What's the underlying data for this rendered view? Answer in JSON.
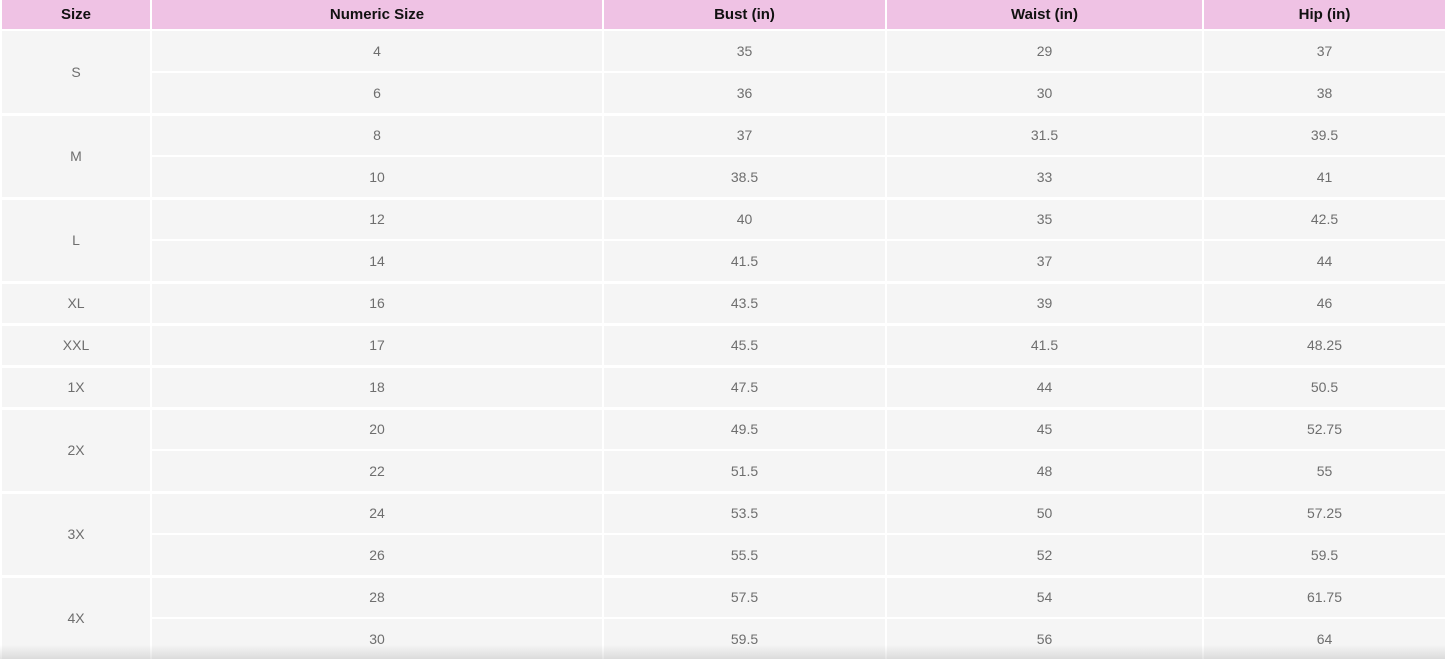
{
  "table": {
    "columns": [
      "Size",
      "Numeric Size",
      "Bust (in)",
      "Waist (in)",
      "Hip (in)"
    ],
    "groups": [
      {
        "size": "S",
        "rows": [
          [
            "4",
            "35",
            "29",
            "37"
          ],
          [
            "6",
            "36",
            "30",
            "38"
          ]
        ]
      },
      {
        "size": "M",
        "rows": [
          [
            "8",
            "37",
            "31.5",
            "39.5"
          ],
          [
            "10",
            "38.5",
            "33",
            "41"
          ]
        ]
      },
      {
        "size": "L",
        "rows": [
          [
            "12",
            "40",
            "35",
            "42.5"
          ],
          [
            "14",
            "41.5",
            "37",
            "44"
          ]
        ]
      },
      {
        "size": "XL",
        "rows": [
          [
            "16",
            "43.5",
            "39",
            "46"
          ]
        ]
      },
      {
        "size": "XXL",
        "rows": [
          [
            "17",
            "45.5",
            "41.5",
            "48.25"
          ]
        ]
      },
      {
        "size": "1X",
        "rows": [
          [
            "18",
            "47.5",
            "44",
            "50.5"
          ]
        ]
      },
      {
        "size": "2X",
        "rows": [
          [
            "20",
            "49.5",
            "45",
            "52.75"
          ],
          [
            "22",
            "51.5",
            "48",
            "55"
          ]
        ]
      },
      {
        "size": "3X",
        "rows": [
          [
            "24",
            "53.5",
            "50",
            "57.25"
          ],
          [
            "26",
            "55.5",
            "52",
            "59.5"
          ]
        ]
      },
      {
        "size": "4X",
        "rows": [
          [
            "28",
            "57.5",
            "54",
            "61.75"
          ],
          [
            "30",
            "59.5",
            "56",
            "64"
          ]
        ]
      }
    ]
  },
  "colors": {
    "header_bg": "#efc2e4",
    "header_text": "#111111",
    "cell_bg": "#f5f5f5",
    "cell_text": "#6e6e6e",
    "separator": "#ffffff"
  }
}
